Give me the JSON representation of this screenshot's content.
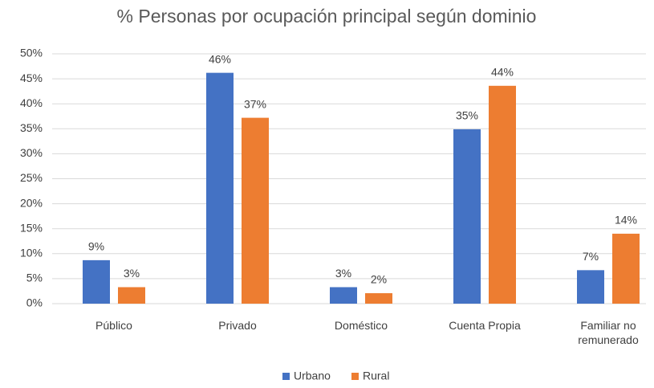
{
  "chart_data": {
    "type": "bar",
    "title": "% Personas por ocupación principal según dominio",
    "categories": [
      "Público",
      "Privado",
      "Doméstico",
      "Cuenta Propia",
      "Familiar no remunerado"
    ],
    "series": [
      {
        "name": "Urbano",
        "color": "#4472c4",
        "values": [
          8.7,
          46.2,
          3.3,
          34.9,
          6.7
        ],
        "value_labels": [
          "9%",
          "46%",
          "3%",
          "35%",
          "7%"
        ]
      },
      {
        "name": "Rural",
        "color": "#ed7d31",
        "values": [
          3.3,
          37.2,
          2.1,
          43.6,
          14.0
        ],
        "value_labels": [
          "3%",
          "37%",
          "2%",
          "44%",
          "14%"
        ]
      }
    ],
    "ylim": [
      0,
      50
    ],
    "yticks": [
      {
        "value": 0,
        "label": "0%"
      },
      {
        "value": 5,
        "label": "5%"
      },
      {
        "value": 10,
        "label": "10%"
      },
      {
        "value": 15,
        "label": "15%"
      },
      {
        "value": 20,
        "label": "20%"
      },
      {
        "value": 25,
        "label": "25%"
      },
      {
        "value": 30,
        "label": "30%"
      },
      {
        "value": 35,
        "label": "35%"
      },
      {
        "value": 40,
        "label": "40%"
      },
      {
        "value": 45,
        "label": "45%"
      },
      {
        "value": 50,
        "label": "50%"
      }
    ],
    "grid": true,
    "legend": "bottom"
  }
}
